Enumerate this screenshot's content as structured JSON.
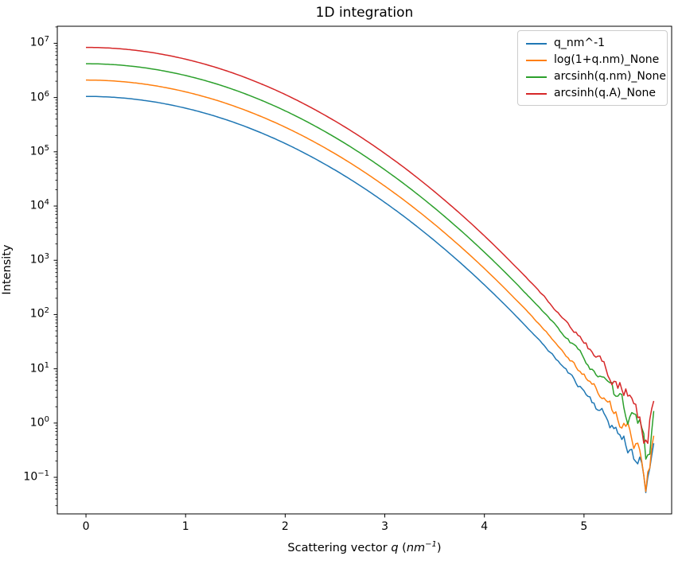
{
  "chart_data": {
    "type": "line",
    "title": "1D integration",
    "xlabel": "Scattering vector q (nm⁻¹)",
    "xlabel_parts": [
      {
        "text": "Scattering vector ",
        "italic": false,
        "sup": false
      },
      {
        "text": "q",
        "italic": true,
        "sup": false
      },
      {
        "text": " (",
        "italic": false,
        "sup": false
      },
      {
        "text": "nm",
        "italic": true,
        "sup": false
      },
      {
        "text": "−1",
        "italic": true,
        "sup": true
      },
      {
        "text": ")",
        "italic": false,
        "sup": false
      }
    ],
    "ylabel": "Intensity",
    "x_scale": "linear",
    "y_scale": "log",
    "grid": false,
    "xlim": [
      -0.288,
      5.88
    ],
    "ylim": [
      0.021,
      20600000.0
    ],
    "ylim_exponents": [
      -1.674,
      7.314
    ],
    "x_ticks": [
      0,
      1,
      2,
      3,
      4,
      5
    ],
    "y_tick_exponents": [
      7,
      6,
      5,
      4,
      3,
      2,
      1,
      0,
      -1
    ],
    "legend_position": "upper right",
    "legend_border_color": "#cccccc",
    "axis_color": "#000000",
    "q_range": [
      0,
      5.7
    ],
    "q_step": 0.02,
    "model": {
      "type": "gaussian_log_decay",
      "description": "I(q) = scale * base_amplitude * exp(-q^2 / two_sigma_sq), noisy tail with final dip and upward spike",
      "base_amplitude": 1050000,
      "two_sigma_sq": 2.0
    },
    "anchors": {
      "q": [
        0,
        0.5,
        1.0,
        1.5,
        2.0,
        2.5,
        3.0,
        3.5,
        4.0,
        4.5,
        5.0,
        5.5,
        5.7
      ],
      "base_intensity": [
        1050000,
        926600,
        636900,
        340900,
        142100,
        46130,
        11660,
        2297,
        352,
        42.1,
        3.91,
        0.283,
        0.092
      ]
    },
    "noise": {
      "start_q": 4.0,
      "max_decades": 0.3,
      "power": 3,
      "smoothing": 0.55,
      "gain": 1.8,
      "dip": {
        "center": 5.62,
        "half_width": 0.065,
        "decades": -0.5
      },
      "spike": {
        "start": 5.63,
        "end_decades": 0.72
      },
      "seeds": [
        11,
        22,
        33,
        47
      ]
    },
    "series": [
      {
        "name": "q_nm^-1",
        "color": "#1f77b4",
        "scale": 1
      },
      {
        "name": "log(1+q.nm)_None",
        "color": "#ff7f0e",
        "scale": 2
      },
      {
        "name": "arcsinh(q.nm)_None",
        "color": "#2ca02c",
        "scale": 4
      },
      {
        "name": "arcsinh(q.A)_None",
        "color": "#d62728",
        "scale": 8
      }
    ]
  }
}
